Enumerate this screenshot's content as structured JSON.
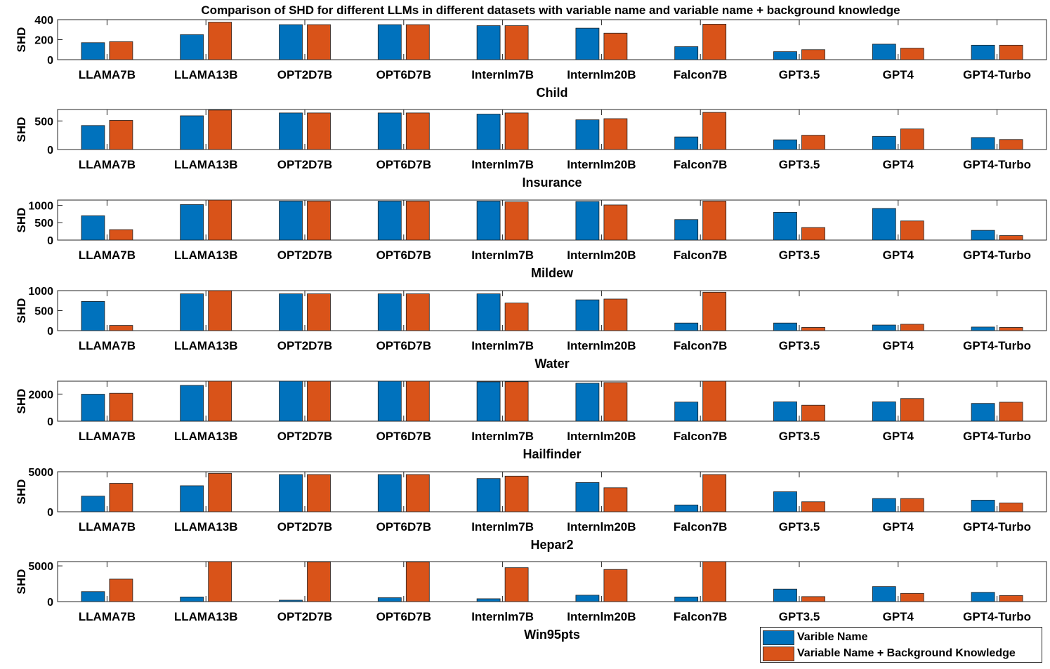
{
  "chart_data": {
    "type": "bar",
    "title": "Comparison of SHD for different LLMs in different datasets with variable name and variable name + background knowledge",
    "categories": [
      "LLAMA7B",
      "LLAMA13B",
      "OPT2D7B",
      "OPT6D7B",
      "Internlm7B",
      "Internlm20B",
      "Falcon7B",
      "GPT3.5",
      "GPT4",
      "GPT4-Turbo"
    ],
    "legend": {
      "placement": "bottom-right",
      "entries": [
        {
          "name": "Varible Name",
          "color": "#0072BD"
        },
        {
          "name": "Variable Name + Background Knowledge",
          "color": "#D95319"
        }
      ]
    },
    "subplots": [
      {
        "dataset": "Child",
        "ylabel": "SHD",
        "ylim": [
          0,
          400
        ],
        "yticks": [
          "0",
          "200",
          "400"
        ],
        "series": [
          {
            "name": "Varible Name",
            "values": [
              170,
              250,
              350,
              350,
              340,
              315,
              130,
              80,
              155,
              145
            ]
          },
          {
            "name": "Variable Name + Background Knowledge",
            "values": [
              180,
              375,
              350,
              350,
              340,
              265,
              355,
              100,
              115,
              145
            ]
          }
        ]
      },
      {
        "dataset": "Insurance",
        "ylabel": "SHD",
        "ylim": [
          0,
          700
        ],
        "yticks": [
          "0",
          "500"
        ],
        "series": [
          {
            "name": "Varible Name",
            "values": [
              420,
              590,
              640,
              640,
              620,
              520,
              220,
              170,
              230,
              210
            ]
          },
          {
            "name": "Variable Name + Background Knowledge",
            "values": [
              510,
              690,
              640,
              640,
              640,
              540,
              650,
              250,
              360,
              175
            ]
          }
        ]
      },
      {
        "dataset": "Mildew",
        "ylabel": "SHD",
        "ylim": [
          0,
          1150
        ],
        "yticks": [
          "0",
          "500",
          "1000"
        ],
        "series": [
          {
            "name": "Varible Name",
            "values": [
              700,
              1020,
              1120,
              1120,
              1120,
              1110,
              590,
              800,
              910,
              280
            ]
          },
          {
            "name": "Variable Name + Background Knowledge",
            "values": [
              300,
              1150,
              1120,
              1120,
              1100,
              1010,
              1120,
              360,
              550,
              130
            ]
          }
        ]
      },
      {
        "dataset": "Water",
        "ylabel": "SHD",
        "ylim": [
          0,
          1000
        ],
        "yticks": [
          "0",
          "500",
          "1000"
        ],
        "series": [
          {
            "name": "Varible Name",
            "values": [
              730,
              920,
              920,
              920,
              920,
              770,
              190,
              190,
              140,
              90
            ]
          },
          {
            "name": "Variable Name + Background Knowledge",
            "values": [
              130,
              1000,
              920,
              920,
              690,
              790,
              960,
              80,
              160,
              80
            ]
          }
        ]
      },
      {
        "dataset": "Hailfinder",
        "ylabel": "SHD",
        "ylim": [
          0,
          2950
        ],
        "yticks": [
          "0",
          "2000"
        ],
        "series": [
          {
            "name": "Varible Name",
            "values": [
              1990,
              2640,
              2950,
              2950,
              2900,
              2800,
              1410,
              1430,
              1430,
              1310
            ]
          },
          {
            "name": "Variable Name + Background Knowledge",
            "values": [
              2060,
              2950,
              2950,
              2950,
              2910,
              2850,
              2950,
              1180,
              1670,
              1400
            ]
          }
        ]
      },
      {
        "dataset": "Hepar2",
        "ylabel": "SHD",
        "ylim": [
          0,
          5000
        ],
        "yticks": [
          "0",
          "5000"
        ],
        "series": [
          {
            "name": "Varible Name",
            "values": [
              1950,
              3250,
              4650,
              4650,
              4150,
              3650,
              850,
              2500,
              1650,
              1450
            ]
          },
          {
            "name": "Variable Name + Background Knowledge",
            "values": [
              3550,
              4800,
              4650,
              4650,
              4450,
              3000,
              4650,
              1250,
              1650,
              1100
            ]
          }
        ]
      },
      {
        "dataset": "Win95pts",
        "ylabel": "SHD",
        "ylim": [
          0,
          5600
        ],
        "yticks": [
          "0",
          "5000"
        ],
        "series": [
          {
            "name": "Varible Name",
            "values": [
              1400,
              650,
              200,
              550,
              400,
              900,
              650,
              1750,
              2100,
              1300
            ]
          },
          {
            "name": "Variable Name + Background Knowledge",
            "values": [
              3150,
              5600,
              5550,
              5550,
              4750,
              4500,
              5600,
              700,
              1150,
              850
            ]
          }
        ]
      }
    ]
  }
}
